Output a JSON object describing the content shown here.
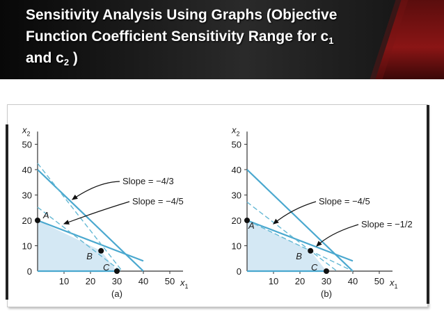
{
  "header": {
    "title_line1": "Sensitivity Analysis Using Graphs (Objective",
    "title_line2_text": "Function Coefficient Sensitivity Range for c",
    "title_line2_sub": "1",
    "title_line3_text": "and c",
    "title_line3_sub": "2",
    "title_line3_tail": " )"
  },
  "colors": {
    "feasible_fill": "#d4e8f4",
    "constraint_line": "#4aa8cf",
    "objective_line": "#64b8d4",
    "axis": "#333333",
    "banner": "#1a1a1a"
  },
  "chart_data": [
    {
      "type": "line",
      "panel_label": "(a)",
      "xlabel": "x1",
      "ylabel": "x2",
      "xlim": [
        0,
        55
      ],
      "ylim": [
        0,
        55
      ],
      "x_ticks": [
        10,
        20,
        30,
        40,
        50
      ],
      "y_ticks": [
        0,
        10,
        20,
        30,
        40,
        50
      ],
      "feasible_region": [
        [
          0,
          0
        ],
        [
          0,
          20
        ],
        [
          24,
          8
        ],
        [
          30,
          0
        ]
      ],
      "constraints": [
        {
          "x": [
            0,
            40
          ],
          "y": [
            40,
            0
          ]
        },
        {
          "x": [
            0,
            40
          ],
          "y": [
            20,
            4
          ]
        },
        {
          "x": [
            0,
            30
          ],
          "y": [
            0,
            0
          ]
        }
      ],
      "points": [
        {
          "label": "A",
          "x": 0,
          "y": 20
        },
        {
          "label": "B",
          "x": 24,
          "y": 8
        },
        {
          "label": "C",
          "x": 30,
          "y": 0
        }
      ],
      "dashed_lines": [
        {
          "label": "Slope = −4/3",
          "x": [
            0,
            32
          ],
          "y": [
            42.5,
            0
          ]
        },
        {
          "label": "Slope = −4/5",
          "x": [
            0,
            40
          ],
          "y": [
            25.2,
            -6.8
          ]
        }
      ]
    },
    {
      "type": "line",
      "panel_label": "(b)",
      "xlabel": "x1",
      "ylabel": "x2",
      "xlim": [
        0,
        55
      ],
      "ylim": [
        0,
        55
      ],
      "x_ticks": [
        10,
        20,
        30,
        40,
        50
      ],
      "y_ticks": [
        0,
        10,
        20,
        30,
        40,
        50
      ],
      "feasible_region": [
        [
          0,
          0
        ],
        [
          0,
          20
        ],
        [
          24,
          8
        ],
        [
          30,
          0
        ]
      ],
      "constraints": [
        {
          "x": [
            0,
            40
          ],
          "y": [
            40,
            0
          ]
        },
        {
          "x": [
            0,
            40
          ],
          "y": [
            20,
            4
          ]
        },
        {
          "x": [
            0,
            30
          ],
          "y": [
            0,
            0
          ]
        }
      ],
      "points": [
        {
          "label": "A",
          "x": 0,
          "y": 20
        },
        {
          "label": "B",
          "x": 24,
          "y": 8
        },
        {
          "label": "C",
          "x": 30,
          "y": 0
        }
      ],
      "dashed_lines": [
        {
          "label": "Slope = −4/5",
          "x": [
            0,
            44
          ],
          "y": [
            27.2,
            -8
          ]
        },
        {
          "label": "Slope = −1/2",
          "x": [
            0,
            44
          ],
          "y": [
            20,
            -2
          ]
        }
      ]
    }
  ]
}
